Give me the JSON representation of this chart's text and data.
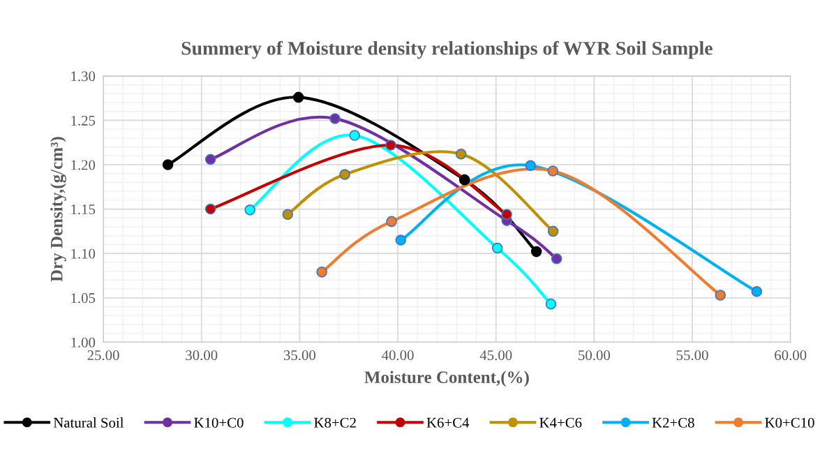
{
  "chart_data": {
    "type": "line",
    "title": "Summery of Moisture density relationships of WYR Soil Sample",
    "xlabel": "Moisture Content,(%)",
    "ylabel": "Dry Density,(g/cm³)",
    "xlim": [
      25,
      60
    ],
    "xticks": [
      {
        "value": 25,
        "label": "25.00"
      },
      {
        "value": 30,
        "label": "30.00"
      },
      {
        "value": 35,
        "label": "35.00"
      },
      {
        "value": 40,
        "label": "40.00"
      },
      {
        "value": 45,
        "label": "45.00"
      },
      {
        "value": 50,
        "label": "50.00"
      },
      {
        "value": 55,
        "label": "55.00"
      },
      {
        "value": 60,
        "label": "60.00"
      }
    ],
    "ylim": [
      1.0,
      1.3
    ],
    "yticks": [
      {
        "value": 1.0,
        "label": "1.00"
      },
      {
        "value": 1.05,
        "label": "1.05"
      },
      {
        "value": 1.1,
        "label": "1.10"
      },
      {
        "value": 1.15,
        "label": "1.15"
      },
      {
        "value": 1.2,
        "label": "1.20"
      },
      {
        "value": 1.25,
        "label": "1.25"
      },
      {
        "value": 1.3,
        "label": "1.30"
      }
    ],
    "grid": true,
    "legend": "bottom",
    "marker": "circle",
    "line_style": "solid",
    "series": [
      {
        "name": "Natural Soil",
        "color": "#000000",
        "x": [
          28.29,
          34.94,
          43.4,
          47.06
        ],
        "values": [
          1.2,
          1.276,
          1.183,
          1.102
        ]
      },
      {
        "name": "K10+C0",
        "color": "#7030a0",
        "x": [
          30.46,
          36.8,
          45.55,
          48.09
        ],
        "values": [
          1.206,
          1.252,
          1.137,
          1.094
        ]
      },
      {
        "name": "K8+C2",
        "color": "#00ffff",
        "x": [
          32.47,
          37.8,
          45.07,
          47.8
        ],
        "values": [
          1.149,
          1.233,
          1.106,
          1.043
        ]
      },
      {
        "name": "K6+C4",
        "color": "#c00000",
        "x": [
          30.46,
          39.64,
          45.55
        ],
        "values": [
          1.15,
          1.222,
          1.144
        ]
      },
      {
        "name": "K4+C6",
        "color": "#bf9000",
        "x": [
          34.39,
          37.3,
          43.22,
          47.91
        ],
        "values": [
          1.144,
          1.189,
          1.212,
          1.125
        ]
      },
      {
        "name": "K2+C8",
        "color": "#00b0f0",
        "x": [
          40.15,
          46.76,
          58.28
        ],
        "values": [
          1.115,
          1.199,
          1.057
        ]
      },
      {
        "name": "K0+C10",
        "color": "#ed7d31",
        "x": [
          36.13,
          39.68,
          47.9,
          56.43
        ],
        "values": [
          1.079,
          1.136,
          1.193,
          1.053
        ]
      }
    ]
  }
}
